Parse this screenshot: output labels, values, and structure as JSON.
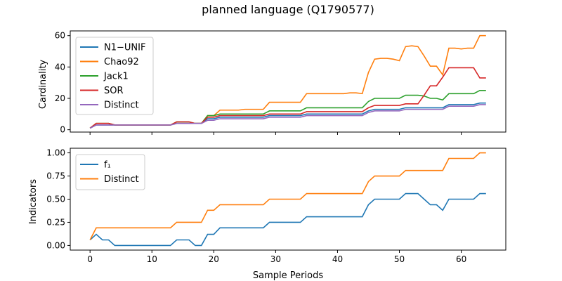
{
  "title": "planned language (Q1790577)",
  "xlabel": "Sample Periods",
  "xticks": [
    0,
    10,
    20,
    30,
    40,
    50,
    60
  ],
  "colors": {
    "blue": "#1f77b4",
    "orange": "#ff7f0e",
    "green": "#2ca02c",
    "red": "#d62728",
    "purple": "#9467bd"
  },
  "chart_data": [
    {
      "type": "line",
      "ylabel": "Cardinality",
      "xlim": [
        -3.2,
        67.2
      ],
      "ylim": [
        -1.5,
        63
      ],
      "yticks": [
        0,
        20,
        40,
        60
      ],
      "legend_position": "upper-left",
      "x": [
        0,
        1,
        2,
        3,
        4,
        5,
        6,
        7,
        8,
        9,
        10,
        11,
        12,
        13,
        14,
        15,
        16,
        17,
        18,
        19,
        20,
        21,
        22,
        23,
        24,
        25,
        26,
        27,
        28,
        29,
        30,
        31,
        32,
        33,
        34,
        35,
        36,
        37,
        38,
        39,
        40,
        41,
        42,
        43,
        44,
        45,
        46,
        47,
        48,
        49,
        50,
        51,
        52,
        53,
        54,
        55,
        56,
        57,
        58,
        59,
        60,
        61,
        62,
        63,
        64
      ],
      "series": [
        {
          "name": "N1−UNIF",
          "color": "#1f77b4",
          "values": [
            1,
            3,
            3,
            3,
            3,
            3,
            3,
            3,
            3,
            3,
            3,
            3,
            3,
            3,
            4,
            4,
            4,
            4,
            4,
            7,
            7,
            8,
            8,
            8,
            8,
            8,
            8,
            8,
            8,
            9,
            9,
            9,
            9,
            9,
            9,
            10,
            10,
            10,
            10,
            10,
            10,
            10,
            10,
            10,
            10,
            12,
            13,
            13,
            13,
            13,
            13,
            14,
            14,
            14,
            14,
            14,
            14,
            14,
            16,
            16,
            16,
            16,
            16,
            17,
            17
          ]
        },
        {
          "name": "Chao92",
          "color": "#ff7f0e",
          "values": [
            1,
            4,
            4,
            4,
            3,
            3,
            3,
            3,
            3,
            3,
            3,
            3,
            3,
            3,
            5,
            5,
            5,
            4,
            4,
            9,
            9,
            12.5,
            12.5,
            12.5,
            12.5,
            13,
            13,
            13,
            13,
            17.5,
            17.5,
            17.5,
            17.5,
            17.5,
            17.5,
            23,
            23,
            23,
            23,
            23,
            23,
            23,
            23.5,
            23.5,
            23,
            36.5,
            45,
            45.5,
            45.5,
            45,
            44,
            53,
            53.5,
            53,
            47,
            40.5,
            40.5,
            35,
            52,
            52,
            51.5,
            52,
            52,
            60,
            60
          ]
        },
        {
          "name": "Jack1",
          "color": "#2ca02c",
          "values": [
            1,
            4,
            4,
            4,
            3,
            3,
            3,
            3,
            3,
            3,
            3,
            3,
            3,
            3,
            5,
            5,
            5,
            4,
            4,
            9,
            9,
            10,
            10,
            10,
            10,
            10,
            10,
            10,
            10,
            12,
            12,
            12,
            12,
            12,
            12,
            14,
            14,
            14,
            14,
            14,
            14,
            14,
            14,
            14,
            14,
            18,
            20,
            20,
            20,
            20,
            20,
            22,
            22,
            22,
            21.5,
            20,
            20,
            19,
            23,
            23,
            23,
            23,
            23,
            25,
            25
          ]
        },
        {
          "name": "SOR",
          "color": "#d62728",
          "values": [
            1,
            4,
            4,
            4,
            3,
            3,
            3,
            3,
            3,
            3,
            3,
            3,
            3,
            3,
            5,
            5,
            5,
            4,
            4,
            8,
            8,
            9,
            9,
            9,
            9,
            9,
            9,
            9,
            9,
            10,
            10,
            10,
            10,
            10,
            10,
            11.5,
            11.5,
            11.5,
            11.5,
            11.5,
            11.5,
            11.5,
            11.5,
            11.5,
            11.5,
            14,
            15.5,
            15.5,
            15.5,
            15.5,
            15.5,
            16.5,
            16.5,
            16.5,
            22,
            28,
            28,
            33.5,
            39.5,
            39.5,
            39.5,
            39.5,
            39.5,
            33,
            33
          ]
        },
        {
          "name": "Distinct",
          "color": "#9467bd",
          "values": [
            1,
            3,
            3,
            3,
            3,
            3,
            3,
            3,
            3,
            3,
            3,
            3,
            3,
            3,
            4,
            4,
            4,
            4,
            4,
            6,
            6,
            7,
            7,
            7,
            7,
            7,
            7,
            7,
            7,
            8,
            8,
            8,
            8,
            8,
            8,
            9,
            9,
            9,
            9,
            9,
            9,
            9,
            9,
            9,
            9,
            11,
            12,
            12,
            12,
            12,
            12,
            13,
            13,
            13,
            13,
            13,
            13,
            13,
            15,
            15,
            15,
            15,
            15,
            16,
            16
          ]
        }
      ]
    },
    {
      "type": "line",
      "ylabel": "Indicators",
      "xlim": [
        -3.2,
        67.2
      ],
      "ylim": [
        -0.05,
        1.05
      ],
      "yticks": [
        "0.00",
        "0.25",
        "0.50",
        "0.75",
        "1.00"
      ],
      "legend_position": "upper-left",
      "x": [
        0,
        1,
        2,
        3,
        4,
        5,
        6,
        7,
        8,
        9,
        10,
        11,
        12,
        13,
        14,
        15,
        16,
        17,
        18,
        19,
        20,
        21,
        22,
        23,
        24,
        25,
        26,
        27,
        28,
        29,
        30,
        31,
        32,
        33,
        34,
        35,
        36,
        37,
        38,
        39,
        40,
        41,
        42,
        43,
        44,
        45,
        46,
        47,
        48,
        49,
        50,
        51,
        52,
        53,
        54,
        55,
        56,
        57,
        58,
        59,
        60,
        61,
        62,
        63,
        64
      ],
      "series": [
        {
          "name": "f₁",
          "color": "#1f77b4",
          "values": [
            0.06,
            0.12,
            0.06,
            0.06,
            0,
            0,
            0,
            0,
            0,
            0,
            0,
            0,
            0,
            0,
            0.06,
            0.06,
            0.06,
            0,
            0,
            0.12,
            0.12,
            0.19,
            0.19,
            0.19,
            0.19,
            0.19,
            0.19,
            0.19,
            0.19,
            0.25,
            0.25,
            0.25,
            0.25,
            0.25,
            0.25,
            0.31,
            0.31,
            0.31,
            0.31,
            0.31,
            0.31,
            0.31,
            0.31,
            0.31,
            0.31,
            0.44,
            0.5,
            0.5,
            0.5,
            0.5,
            0.5,
            0.56,
            0.56,
            0.56,
            0.5,
            0.44,
            0.44,
            0.38,
            0.5,
            0.5,
            0.5,
            0.5,
            0.5,
            0.56,
            0.56
          ]
        },
        {
          "name": "Distinct",
          "color": "#ff7f0e",
          "values": [
            0.06,
            0.19,
            0.19,
            0.19,
            0.19,
            0.19,
            0.19,
            0.19,
            0.19,
            0.19,
            0.19,
            0.19,
            0.19,
            0.19,
            0.25,
            0.25,
            0.25,
            0.25,
            0.25,
            0.38,
            0.38,
            0.44,
            0.44,
            0.44,
            0.44,
            0.44,
            0.44,
            0.44,
            0.44,
            0.5,
            0.5,
            0.5,
            0.5,
            0.5,
            0.5,
            0.56,
            0.56,
            0.56,
            0.56,
            0.56,
            0.56,
            0.56,
            0.56,
            0.56,
            0.56,
            0.69,
            0.75,
            0.75,
            0.75,
            0.75,
            0.75,
            0.81,
            0.81,
            0.81,
            0.81,
            0.81,
            0.81,
            0.81,
            0.94,
            0.94,
            0.94,
            0.94,
            0.94,
            1,
            1
          ]
        }
      ]
    }
  ]
}
